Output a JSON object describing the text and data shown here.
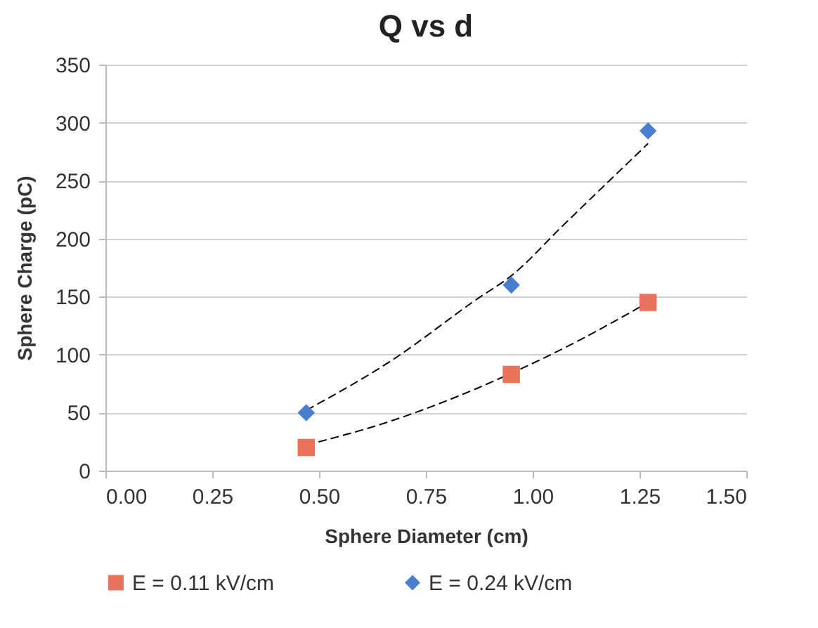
{
  "chart_data": {
    "type": "scatter",
    "title": "Q vs d",
    "xlabel": "Sphere Diameter (cm)",
    "ylabel": "Sphere Charge (pC)",
    "series": [
      {
        "name": "E = 0.11 kV/cm",
        "marker": "square",
        "color": "#e8735a",
        "x": [
          0.47,
          0.95,
          1.27
        ],
        "values": [
          20,
          83,
          145
        ]
      },
      {
        "name": "E = 0.24 kV/cm",
        "marker": "diamond",
        "color": "#4a7fd0",
        "x": [
          0.47,
          0.95,
          1.27
        ],
        "values": [
          50,
          160,
          293
        ]
      },
      {
        "type": "line",
        "line_style": "dashed",
        "marker": "none",
        "color": "#000000",
        "x": [
          0.47,
          0.67,
          0.87,
          0.95,
          1.07,
          1.27
        ],
        "values": [
          22,
          43,
          71,
          84,
          105,
          145
        ]
      },
      {
        "type": "line",
        "line_style": "dashed",
        "marker": "none",
        "color": "#000000",
        "x": [
          0.47,
          0.67,
          0.87,
          0.95,
          1.07,
          1.27
        ],
        "values": [
          52,
          95,
          148,
          168,
          211,
          282
        ]
      }
    ],
    "xlim": [
      0,
      1.5
    ],
    "xticks": [
      {
        "value": 0,
        "label": "0.00"
      },
      {
        "value": 0.25,
        "label": "0.25"
      },
      {
        "value": 0.5,
        "label": "0.50"
      },
      {
        "value": 0.75,
        "label": "0.75"
      },
      {
        "value": 1,
        "label": "1.00"
      },
      {
        "value": 1.25,
        "label": "1.25"
      },
      {
        "value": 1.5,
        "label": "1.50"
      }
    ],
    "ylim": [
      0,
      350
    ],
    "yticks": [
      0,
      50,
      100,
      150,
      200,
      250,
      300,
      350
    ],
    "grid": "y",
    "legend": "bottom"
  }
}
